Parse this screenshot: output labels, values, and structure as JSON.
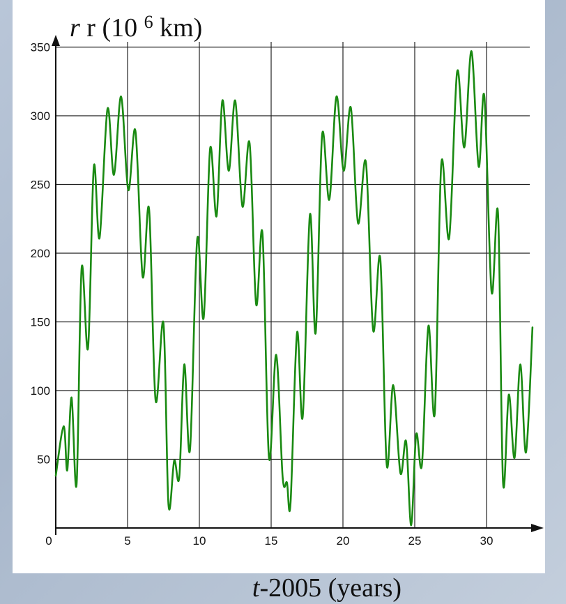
{
  "chart_data": {
    "type": "line",
    "title": "",
    "ylabel": "r (10",
    "ylabel_exp": "6",
    "ylabel_unit": " km)",
    "xlabel": "t-2005 (years)",
    "xlabel_italic": "t",
    "xlabel_rest": "-2005 (years)",
    "xlim": [
      0,
      33.5
    ],
    "ylim": [
      0,
      350
    ],
    "xticks": [
      0,
      5,
      10,
      15,
      20,
      25,
      30
    ],
    "yticks": [
      50,
      100,
      150,
      200,
      250,
      300,
      350
    ],
    "grid": true,
    "line_color": "#1a8a12",
    "series": [
      {
        "name": "",
        "x": [
          0,
          0.55,
          0.8,
          1.1,
          1.45,
          1.8,
          2.25,
          2.65,
          3.05,
          3.6,
          4.05,
          4.55,
          5.05,
          5.55,
          6.05,
          6.5,
          6.95,
          7.5,
          7.85,
          8.25,
          8.6,
          8.95,
          9.35,
          9.85,
          10.3,
          10.75,
          11.2,
          11.6,
          12.05,
          12.5,
          13.0,
          13.5,
          13.95,
          14.4,
          14.85,
          15.35,
          15.8,
          16.1,
          16.35,
          16.8,
          17.2,
          17.7,
          18.1,
          18.55,
          19.05,
          19.55,
          20.05,
          20.55,
          21.05,
          21.6,
          22.1,
          22.6,
          23.05,
          23.5,
          24.0,
          24.4,
          24.75,
          25.1,
          25.5,
          25.95,
          26.4,
          26.85,
          27.4,
          27.95,
          28.45,
          28.95,
          29.45,
          29.85,
          30.35,
          30.8,
          31.15,
          31.55,
          31.95,
          32.35,
          32.75,
          33.2
        ],
        "y": [
          38,
          74,
          42,
          95,
          32,
          189,
          131,
          263,
          211,
          305,
          257,
          314,
          246,
          289,
          183,
          232,
          93,
          149,
          17,
          49,
          37,
          119,
          57,
          210,
          153,
          276,
          227,
          311,
          260,
          311,
          234,
          280,
          163,
          214,
          51,
          126,
          37,
          33,
          18,
          142,
          81,
          228,
          142,
          286,
          239,
          314,
          260,
          306,
          222,
          266,
          144,
          196,
          46,
          104,
          40,
          63,
          2,
          68,
          46,
          147,
          84,
          265,
          211,
          332,
          277,
          347,
          263,
          314,
          172,
          229,
          33,
          97,
          51,
          119,
          55,
          146
        ]
      }
    ]
  }
}
